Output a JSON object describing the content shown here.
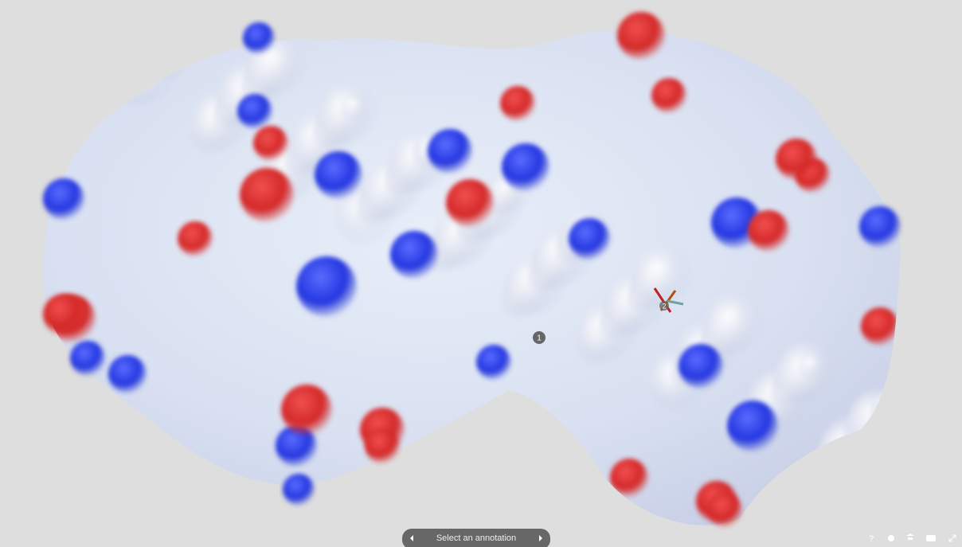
{
  "annotation_bar": {
    "label": "Select an annotation"
  },
  "annotations": [
    {
      "label": "1"
    },
    {
      "label": "2"
    }
  ],
  "toolbar": {
    "help": "?"
  }
}
